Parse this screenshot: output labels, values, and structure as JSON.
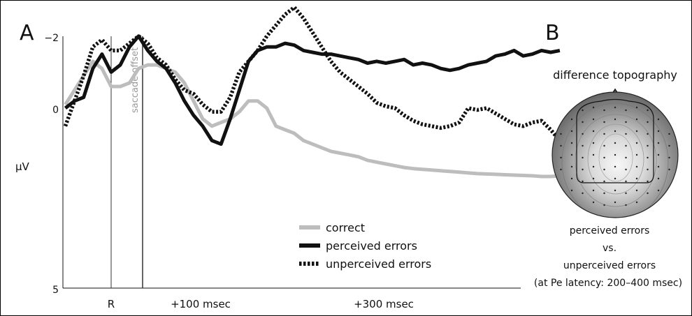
{
  "panel_a": {
    "label": "A",
    "ylabel": "μV",
    "y_ticks": [
      {
        "value": -2,
        "label": "−2"
      },
      {
        "value": 0,
        "label": "0"
      },
      {
        "value": 5,
        "label": "5"
      }
    ],
    "x_ticks": [
      "R",
      "+100 msec",
      "+300 msec"
    ],
    "markers": {
      "response": "R",
      "saccade_offset": "saccade offset"
    },
    "legend": [
      "correct",
      "perceived errors",
      "unperceived errors"
    ]
  },
  "panel_b": {
    "label": "B",
    "title": "difference topography",
    "caption_line1": "perceived errors",
    "caption_line2": "vs.",
    "caption_line3": "unperceived errors",
    "caption_line4": "(at Pe latency: 200–400 msec)"
  },
  "chart_data": {
    "type": "line",
    "xlabel": "",
    "ylabel": "μV",
    "ylim": [
      -2,
      5
    ],
    "x_unit": "msec relative to response (R = 0)",
    "x_ticks": [
      {
        "label": "R",
        "value": 0
      },
      {
        "label": "+100 msec",
        "value": 100
      },
      {
        "label": "+300 msec",
        "value": 300
      }
    ],
    "vertical_markers": [
      {
        "label": "R",
        "value": 0
      },
      {
        "label": "saccade offset",
        "value": 35
      }
    ],
    "legend_position": "bottom-right",
    "series": [
      {
        "name": "correct",
        "color": "#bdbdbd",
        "dash": "solid",
        "x": [
          -50,
          -40,
          -30,
          -20,
          -10,
          0,
          10,
          20,
          30,
          40,
          50,
          60,
          70,
          80,
          90,
          100,
          110,
          120,
          130,
          140,
          150,
          160,
          170,
          180,
          190,
          200,
          210,
          220,
          230,
          240,
          250,
          260,
          270,
          280,
          290,
          300,
          310,
          320,
          330,
          340,
          350,
          360,
          370,
          380,
          390,
          400,
          410,
          420,
          430,
          440,
          450,
          460,
          470,
          480,
          490
        ],
        "y": [
          0.1,
          0.5,
          0.9,
          1.3,
          1.1,
          0.6,
          0.6,
          0.7,
          1.1,
          1.2,
          1.2,
          1.1,
          1.0,
          0.7,
          0.2,
          -0.3,
          -0.5,
          -0.4,
          -0.3,
          -0.1,
          0.2,
          0.2,
          0.0,
          -0.5,
          -0.6,
          -0.7,
          -0.9,
          -1.0,
          -1.1,
          -1.2,
          -1.25,
          -1.3,
          -1.35,
          -1.45,
          -1.5,
          -1.55,
          -1.6,
          -1.65,
          -1.68,
          -1.7,
          -1.72,
          -1.74,
          -1.76,
          -1.78,
          -1.8,
          -1.82,
          -1.83,
          -1.84,
          -1.85,
          -1.86,
          -1.87,
          -1.88,
          -1.9,
          -1.9,
          -1.88
        ]
      },
      {
        "name": "perceived errors",
        "color": "#111111",
        "dash": "solid",
        "x": [
          -50,
          -40,
          -30,
          -20,
          -10,
          0,
          10,
          20,
          30,
          40,
          50,
          60,
          70,
          80,
          90,
          100,
          110,
          120,
          130,
          140,
          150,
          160,
          170,
          180,
          190,
          200,
          210,
          220,
          230,
          240,
          250,
          260,
          270,
          280,
          290,
          300,
          310,
          320,
          330,
          340,
          350,
          360,
          370,
          380,
          390,
          400,
          410,
          420,
          430,
          440,
          450,
          460,
          470,
          480,
          490
        ],
        "y": [
          0.0,
          0.2,
          0.3,
          1.1,
          1.5,
          1.0,
          1.2,
          1.7,
          2.0,
          1.6,
          1.3,
          1.1,
          0.7,
          0.2,
          -0.2,
          -0.5,
          -0.9,
          -1.0,
          -0.3,
          0.5,
          1.3,
          1.6,
          1.7,
          1.7,
          1.8,
          1.75,
          1.6,
          1.55,
          1.5,
          1.5,
          1.45,
          1.4,
          1.35,
          1.25,
          1.3,
          1.25,
          1.3,
          1.35,
          1.2,
          1.25,
          1.2,
          1.1,
          1.05,
          1.1,
          1.2,
          1.25,
          1.3,
          1.45,
          1.5,
          1.6,
          1.45,
          1.5,
          1.6,
          1.55,
          1.6
        ]
      },
      {
        "name": "unperceived errors",
        "color": "#111111",
        "dash": "dotted",
        "x": [
          -50,
          -40,
          -30,
          -20,
          -10,
          0,
          10,
          20,
          30,
          40,
          50,
          60,
          70,
          80,
          90,
          100,
          110,
          120,
          130,
          140,
          150,
          160,
          170,
          180,
          190,
          200,
          210,
          220,
          230,
          240,
          250,
          260,
          270,
          280,
          290,
          300,
          310,
          320,
          330,
          340,
          350,
          360,
          370,
          380,
          390,
          400,
          410,
          420,
          430,
          440,
          450,
          460,
          470,
          480,
          490
        ],
        "y": [
          -0.5,
          0.2,
          0.9,
          1.7,
          1.9,
          1.6,
          1.6,
          1.8,
          2.0,
          1.8,
          1.4,
          1.2,
          0.8,
          0.5,
          0.4,
          0.1,
          -0.1,
          -0.1,
          0.3,
          1.0,
          1.3,
          1.6,
          2.0,
          2.3,
          2.6,
          2.8,
          2.5,
          2.1,
          1.7,
          1.3,
          1.0,
          0.8,
          0.6,
          0.4,
          0.15,
          0.05,
          0.0,
          -0.2,
          -0.35,
          -0.45,
          -0.5,
          -0.55,
          -0.5,
          -0.4,
          0.0,
          -0.05,
          0.0,
          -0.15,
          -0.3,
          -0.45,
          -0.5,
          -0.4,
          -0.35,
          -0.6,
          -0.9
        ]
      }
    ]
  }
}
